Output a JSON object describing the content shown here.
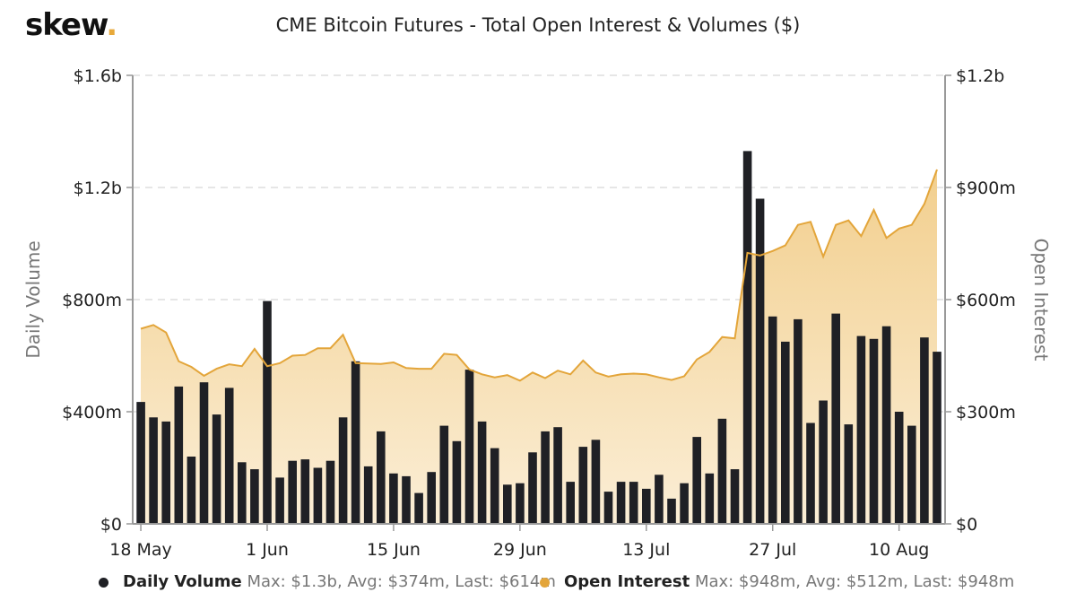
{
  "header": {
    "logo_text": "skew",
    "logo_dot": ".",
    "title": "CME Bitcoin Futures - Total Open Interest & Volumes ($)"
  },
  "colors": {
    "volume_bar": "#1f2025",
    "open_interest_line": "#e3a53a",
    "open_interest_fill_top": "#f2cf8e",
    "open_interest_fill_bottom": "#fbeed6",
    "logo_dot": "#e8a93a"
  },
  "legend": {
    "volume": {
      "name": "Daily Volume",
      "stats": "Max: $1.3b, Avg: $374m, Last: $614m"
    },
    "open_interest": {
      "name": "Open Interest",
      "stats": "Max: $948m, Avg: $512m, Last: $948m"
    }
  },
  "chart_data": {
    "type": "bar",
    "title": "CME Bitcoin Futures - Total Open Interest & Volumes ($)",
    "xlabel": "",
    "ylabel": "Daily Volume",
    "y2label": "Open Interest",
    "ylim": [
      0,
      1600
    ],
    "y2lim": [
      0,
      1200
    ],
    "units": "millions USD",
    "yticks": [
      0,
      400,
      800,
      1200,
      1600
    ],
    "ytick_labels": [
      "$0",
      "$400m",
      "$800m",
      "$1.2b",
      "$1.6b"
    ],
    "y2ticks": [
      0,
      300,
      600,
      900,
      1200
    ],
    "y2tick_labels": [
      "$0",
      "$300m",
      "$600m",
      "$900m",
      "$1.2b"
    ],
    "xtick_labels": [
      "18 May",
      "1 Jun",
      "15 Jun",
      "29 Jun",
      "13 Jul",
      "27 Jul",
      "10 Aug"
    ],
    "xtick_indices": [
      0,
      10,
      20,
      30,
      40,
      50,
      60
    ],
    "grid": "horizontal-dashed",
    "legend_position": "bottom",
    "series": [
      {
        "name": "Daily Volume",
        "type": "bar",
        "axis": "left",
        "values": [
          435,
          380,
          365,
          490,
          240,
          505,
          390,
          485,
          220,
          195,
          795,
          165,
          225,
          230,
          200,
          225,
          380,
          580,
          205,
          330,
          180,
          170,
          110,
          185,
          350,
          295,
          550,
          365,
          270,
          140,
          145,
          255,
          330,
          345,
          150,
          275,
          300,
          115,
          150,
          150,
          125,
          175,
          90,
          145,
          310,
          180,
          375,
          195,
          1330,
          1160,
          740,
          650,
          730,
          360,
          440,
          750,
          355,
          670,
          660,
          705,
          400,
          350,
          665,
          614
        ]
      },
      {
        "name": "Open Interest",
        "type": "area",
        "axis": "right",
        "values": [
          522,
          532,
          512,
          435,
          420,
          396,
          415,
          427,
          422,
          468,
          422,
          430,
          450,
          452,
          470,
          470,
          506,
          430,
          429,
          428,
          432,
          417,
          415,
          415,
          455,
          452,
          413,
          400,
          392,
          398,
          383,
          405,
          390,
          410,
          400,
          437,
          405,
          394,
          400,
          402,
          400,
          392,
          385,
          395,
          440,
          460,
          500,
          496,
          725,
          718,
          730,
          745,
          800,
          808,
          715,
          800,
          812,
          770,
          840,
          765,
          790,
          800,
          856,
          948
        ]
      }
    ]
  }
}
